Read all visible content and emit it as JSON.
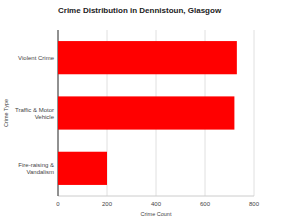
{
  "chart_data": {
    "type": "bar",
    "orientation": "horizontal",
    "title": "Crime Distribution in Dennistoun, Glasgow",
    "x_label": "Crime Count",
    "y_label": "Crime Type",
    "categories": [
      "Violent Crime",
      "Traffic & Motor Vehicle",
      "Fire-raising & Vandalism"
    ],
    "values": [
      730,
      720,
      200
    ],
    "color": "#ff0000",
    "xlim": [
      0,
      800
    ],
    "xticks": [
      0,
      200,
      400,
      600,
      800
    ],
    "grid": true
  }
}
